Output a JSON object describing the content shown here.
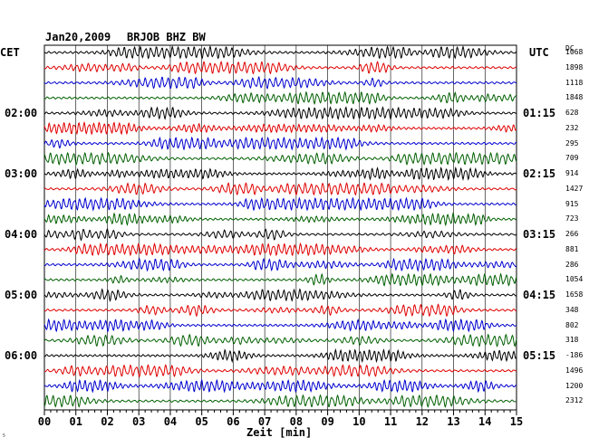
{
  "header": {
    "date": "Jan20,2009",
    "station": "BRJOB BHZ BW",
    "left_zone": "CET",
    "right_zone": "UTC",
    "scale_label": "DC",
    "x_axis_label": "Zeit [min]",
    "corner_mark": "⁵"
  },
  "chart_data": {
    "type": "line",
    "title": "Jan20,2009   BRJOB BHZ BW",
    "xlabel": "Zeit [min]",
    "ylabel": "",
    "xlim": [
      0,
      15
    ],
    "x_ticks": [
      "00",
      "01",
      "02",
      "03",
      "04",
      "05",
      "06",
      "07",
      "08",
      "09",
      "10",
      "11",
      "12",
      "13",
      "14",
      "15"
    ],
    "grid": true,
    "trace_colors": [
      "#000000",
      "#e00000",
      "#0000d0",
      "#006000"
    ],
    "left_time_labels": [
      {
        "row": 4,
        "label": "02:00"
      },
      {
        "row": 8,
        "label": "03:00"
      },
      {
        "row": 12,
        "label": "04:00"
      },
      {
        "row": 16,
        "label": "05:00"
      },
      {
        "row": 20,
        "label": "06:00"
      }
    ],
    "right_time_labels": [
      {
        "row": 4,
        "label": "01:15"
      },
      {
        "row": 8,
        "label": "02:15"
      },
      {
        "row": 12,
        "label": "03:15"
      },
      {
        "row": 16,
        "label": "04:15"
      },
      {
        "row": 20,
        "label": "05:15"
      }
    ],
    "dc_offsets": [
      "1068",
      "1898",
      "1118",
      "1848",
      "628",
      "232",
      "295",
      "709",
      "914",
      "1427",
      "915",
      "723",
      "266",
      "881",
      "286",
      "1054",
      "1658",
      "348",
      "802",
      "318",
      "-186",
      "1496",
      "1200",
      "2312"
    ]
  }
}
